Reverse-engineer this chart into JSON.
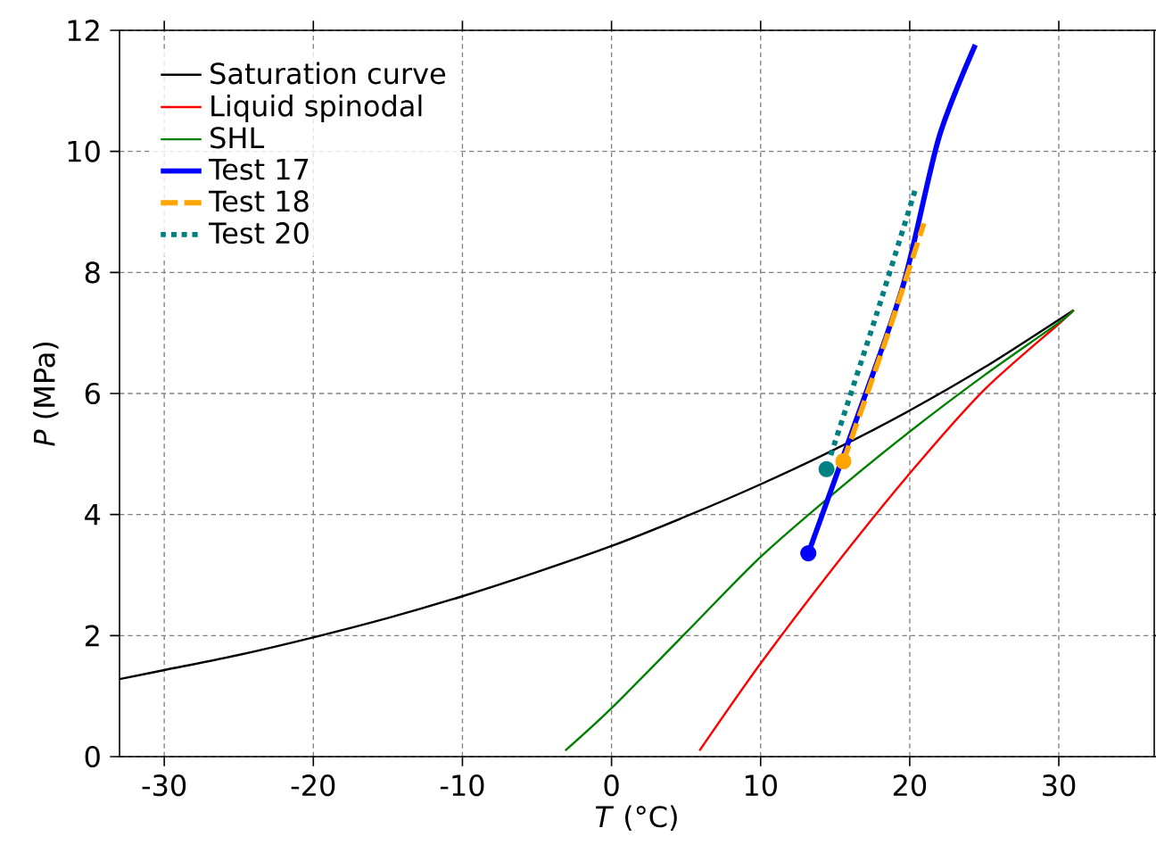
{
  "chart_data": {
    "type": "line",
    "xlabel": "*T* (°C)",
    "ylabel": "*P* (MPa)",
    "xlim": [
      -33,
      36.4
    ],
    "ylim": [
      0,
      12
    ],
    "xticks": [
      -30,
      -20,
      -10,
      0,
      10,
      20,
      30
    ],
    "yticks": [
      0,
      2,
      4,
      6,
      8,
      10,
      12
    ],
    "grid": true,
    "legend": "top left",
    "series": [
      {
        "name": "Saturation curve",
        "color": "#000000",
        "line_style": "solid",
        "x": [
          -33,
          -30,
          -25,
          -20,
          -15,
          -10,
          -5,
          0,
          5,
          10,
          15,
          20,
          25,
          31
        ],
        "values": [
          1.28,
          1.43,
          1.68,
          1.97,
          2.29,
          2.65,
          3.05,
          3.48,
          3.97,
          4.5,
          5.08,
          5.72,
          6.43,
          7.38
        ]
      },
      {
        "name": "Liquid spinodal",
        "color": "#ff0000",
        "line_style": "solid",
        "x": [
          5.9,
          10,
          15,
          20,
          25,
          30,
          31
        ],
        "values": [
          0.1,
          1.54,
          3.16,
          4.68,
          6.06,
          7.15,
          7.38
        ]
      },
      {
        "name": "SHL",
        "color": "#008000",
        "line_style": "solid",
        "x": [
          -3.1,
          0,
          5,
          10,
          15,
          20,
          25,
          30,
          31
        ],
        "values": [
          0.1,
          0.8,
          2.05,
          3.3,
          4.37,
          5.37,
          6.3,
          7.17,
          7.38
        ]
      },
      {
        "name": "Test 17",
        "color": "#0000ff",
        "line_style": "solid",
        "x": [
          13.2,
          16.35,
          19.55,
          21.96,
          24.4
        ],
        "values": [
          3.36,
          5.52,
          7.78,
          10.23,
          11.76
        ]
      },
      {
        "name": "Test 18",
        "color": "#ffa500",
        "line_style": "dashed",
        "x": [
          15.55,
          18.35,
          20.95
        ],
        "values": [
          4.88,
          6.85,
          8.81
        ]
      },
      {
        "name": "Test 20",
        "color": "#008080",
        "line_style": "dotted",
        "x": [
          14.7,
          17.75,
          20.35
        ],
        "values": [
          4.98,
          7.29,
          9.35
        ]
      },
      {
        "type": "scatter",
        "marker": "circle",
        "color": "#0000ff",
        "x": [
          13.2
        ],
        "values": [
          3.36
        ]
      },
      {
        "type": "scatter",
        "marker": "circle",
        "color": "#ffa500",
        "x": [
          15.55
        ],
        "values": [
          4.88
        ]
      },
      {
        "type": "scatter",
        "marker": "circle",
        "color": "#008080",
        "x": [
          14.42
        ],
        "values": [
          4.75
        ]
      }
    ]
  }
}
